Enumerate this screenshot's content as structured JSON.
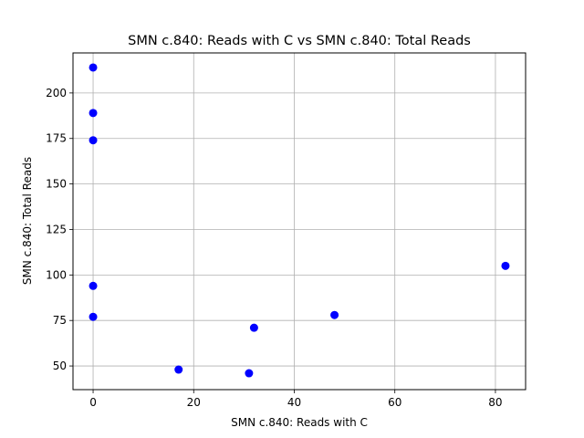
{
  "chart_data": {
    "type": "scatter",
    "title": "SMN c.840: Reads with C vs SMN c.840: Total Reads",
    "xlabel": "SMN c.840: Reads with C",
    "ylabel": "SMN c.840: Total Reads",
    "xlim": [
      -4,
      86
    ],
    "ylim": [
      37,
      222
    ],
    "xticks": [
      0,
      20,
      40,
      60,
      80
    ],
    "yticks": [
      50,
      75,
      100,
      125,
      150,
      175,
      200
    ],
    "grid": true,
    "point_color": "#0000ff",
    "points": [
      {
        "x": 0,
        "y": 214
      },
      {
        "x": 0,
        "y": 189
      },
      {
        "x": 0,
        "y": 174
      },
      {
        "x": 0,
        "y": 94
      },
      {
        "x": 0,
        "y": 77
      },
      {
        "x": 17,
        "y": 48
      },
      {
        "x": 31,
        "y": 46
      },
      {
        "x": 32,
        "y": 71
      },
      {
        "x": 48,
        "y": 78
      },
      {
        "x": 82,
        "y": 105
      }
    ]
  }
}
